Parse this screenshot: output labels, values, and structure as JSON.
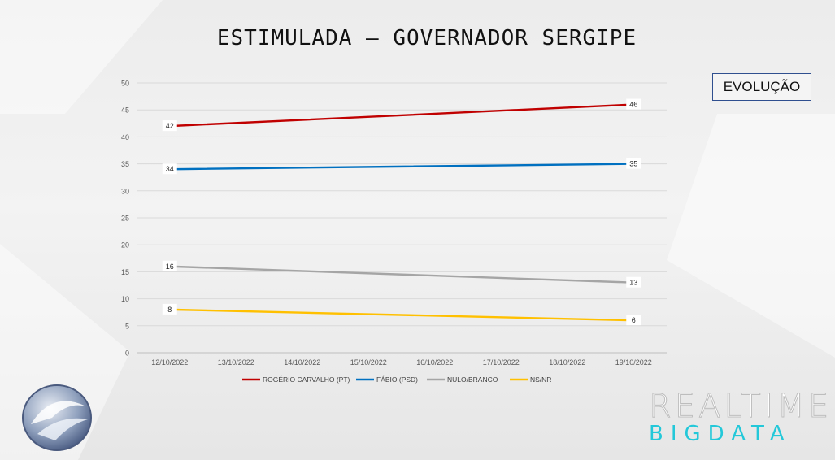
{
  "page": {
    "title": "ESTIMULADA – GOVERNADOR SERGIPE",
    "badge": "EVOLUÇÃO",
    "brand_top": "REALTIME",
    "brand_bottom": "BIGDATA"
  },
  "chart_data": {
    "type": "line",
    "title": "ESTIMULADA – GOVERNADOR SERGIPE",
    "categories": [
      "12/10/2022",
      "13/10/2022",
      "14/10/2022",
      "15/10/2022",
      "16/10/2022",
      "17/10/2022",
      "18/10/2022",
      "19/10/2022"
    ],
    "ylim": [
      0,
      50
    ],
    "yticks": [
      0,
      5,
      10,
      15,
      20,
      25,
      30,
      35,
      40,
      45,
      50
    ],
    "grid": true,
    "legend": "bottom",
    "series": [
      {
        "name": "ROGÉRIO CARVALHO (PT)",
        "color": "#c00000",
        "points": [
          {
            "x": "12/10/2022",
            "y": 42
          },
          {
            "x": "19/10/2022",
            "y": 46
          }
        ]
      },
      {
        "name": "FÁBIO (PSD)",
        "color": "#0070c0",
        "points": [
          {
            "x": "12/10/2022",
            "y": 34
          },
          {
            "x": "19/10/2022",
            "y": 35
          }
        ]
      },
      {
        "name": "NULO/BRANCO",
        "color": "#a5a5a5",
        "points": [
          {
            "x": "12/10/2022",
            "y": 16
          },
          {
            "x": "19/10/2022",
            "y": 13
          }
        ]
      },
      {
        "name": "NS/NR",
        "color": "#ffc000",
        "points": [
          {
            "x": "12/10/2022",
            "y": 8
          },
          {
            "x": "19/10/2022",
            "y": 6
          }
        ]
      }
    ]
  }
}
